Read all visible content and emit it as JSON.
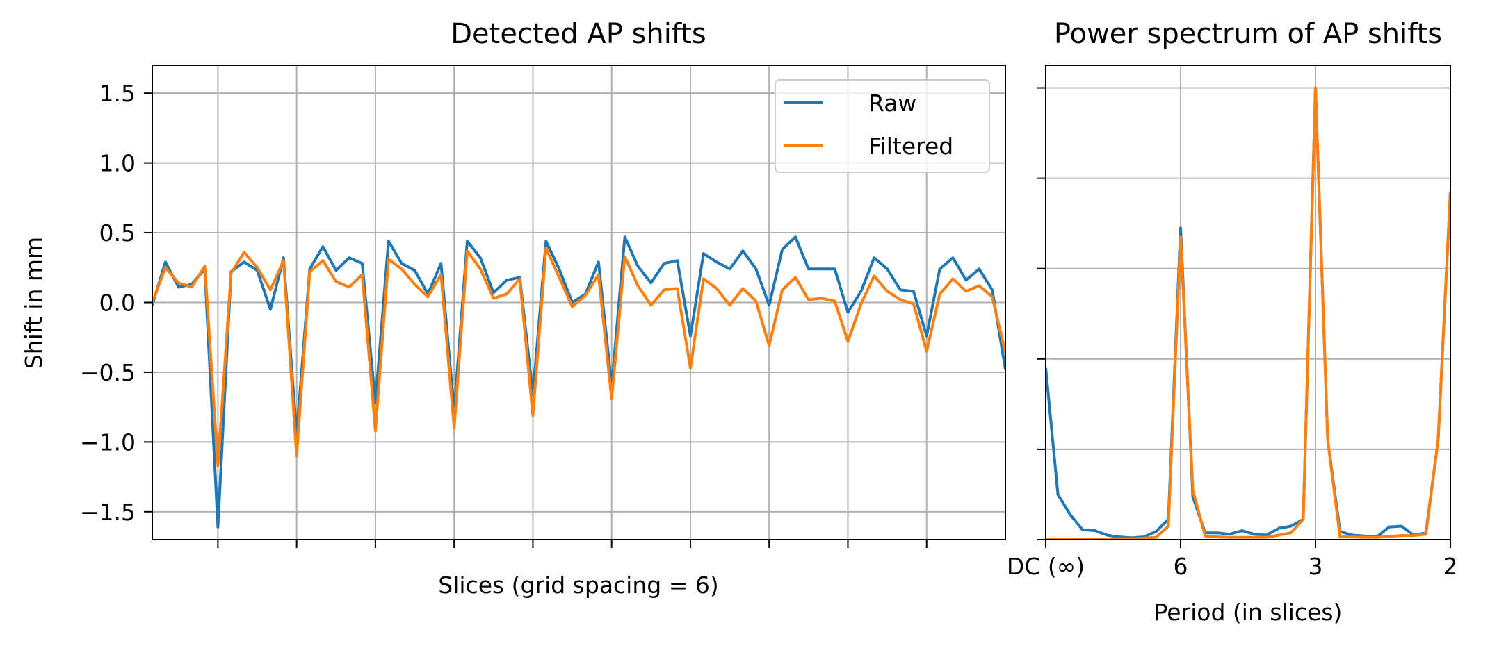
{
  "chart_data": [
    {
      "type": "line",
      "title": "Detected AP shifts",
      "xlabel": "Slices (grid spacing = 6)",
      "ylabel": "Shift in mm",
      "xlim": [
        0,
        65
      ],
      "ylim": [
        -1.7,
        1.7
      ],
      "xgrid": [
        5,
        11,
        17,
        23,
        29,
        35,
        41,
        47,
        53,
        59
      ],
      "xticklabels_shown": false,
      "yticks": [
        1.5,
        1.0,
        0.5,
        0.0,
        -0.5,
        -1.0,
        -1.5
      ],
      "ytick_labels": [
        "1.5",
        "1.0",
        "0.5",
        "0.0",
        "−0.5",
        "−1.0",
        "−1.5"
      ],
      "grid": true,
      "legend": "top-right",
      "series": [
        {
          "name": "Raw",
          "color": "#1f77b4",
          "values": [
            -0.02,
            0.29,
            0.11,
            0.13,
            0.24,
            -1.61,
            0.22,
            0.29,
            0.23,
            -0.05,
            0.32,
            -0.95,
            0.24,
            0.4,
            0.23,
            0.32,
            0.28,
            -0.72,
            0.44,
            0.28,
            0.23,
            0.06,
            0.28,
            -0.78,
            0.44,
            0.32,
            0.07,
            0.16,
            0.18,
            -0.66,
            0.44,
            0.24,
            0.0,
            0.06,
            0.29,
            -0.6,
            0.47,
            0.26,
            0.14,
            0.28,
            0.3,
            -0.24,
            0.35,
            0.29,
            0.24,
            0.37,
            0.24,
            -0.02,
            0.38,
            0.47,
            0.24,
            0.24,
            0.24,
            -0.07,
            0.08,
            0.32,
            0.24,
            0.09,
            0.08,
            -0.24,
            0.24,
            0.32,
            0.16,
            0.24,
            0.09,
            -0.48
          ]
        },
        {
          "name": "Filtered",
          "color": "#ff7f0e",
          "values": [
            0.0,
            0.25,
            0.14,
            0.11,
            0.26,
            -1.17,
            0.21,
            0.36,
            0.25,
            0.09,
            0.3,
            -1.1,
            0.22,
            0.3,
            0.15,
            0.11,
            0.2,
            -0.92,
            0.31,
            0.24,
            0.13,
            0.04,
            0.2,
            -0.9,
            0.37,
            0.24,
            0.03,
            0.06,
            0.17,
            -0.81,
            0.39,
            0.18,
            -0.03,
            0.05,
            0.2,
            -0.69,
            0.33,
            0.12,
            -0.02,
            0.09,
            0.1,
            -0.47,
            0.17,
            0.1,
            -0.02,
            0.1,
            0.01,
            -0.31,
            0.09,
            0.18,
            0.02,
            0.03,
            0.01,
            -0.28,
            -0.01,
            0.19,
            0.08,
            0.02,
            -0.01,
            -0.35,
            0.06,
            0.17,
            0.08,
            0.12,
            0.04,
            -0.36
          ]
        }
      ]
    },
    {
      "type": "line",
      "title": "Power spectrum of AP shifts",
      "xlabel": "Period (in slices)",
      "ylabel": "",
      "xlim": [
        0,
        33
      ],
      "ylim": [
        0,
        1.05
      ],
      "xticks": [
        0,
        11,
        22,
        33
      ],
      "xtick_labels": [
        "DC (∞)",
        "6",
        "3",
        "2"
      ],
      "yticks": [
        0.0,
        0.2,
        0.4,
        0.6,
        0.8,
        1.0
      ],
      "yticklabels_shown": false,
      "grid": true,
      "series": [
        {
          "name": "Raw",
          "color": "#1f77b4",
          "values": [
            0.38,
            0.1,
            0.055,
            0.022,
            0.02,
            0.01,
            0.006,
            0.004,
            0.006,
            0.018,
            0.045,
            0.69,
            0.095,
            0.015,
            0.015,
            0.012,
            0.02,
            0.012,
            0.01,
            0.025,
            0.03,
            0.045,
            1.0,
            0.22,
            0.018,
            0.01,
            0.008,
            0.006,
            0.028,
            0.03,
            0.01,
            0.015,
            0.22,
            0.77
          ]
        },
        {
          "name": "Filtered",
          "color": "#ff7f0e",
          "values": [
            0.0,
            0.0,
            0.0,
            0.001,
            0.001,
            0.001,
            0.002,
            0.002,
            0.003,
            0.005,
            0.03,
            0.67,
            0.11,
            0.008,
            0.006,
            0.005,
            0.005,
            0.005,
            0.005,
            0.01,
            0.015,
            0.045,
            1.0,
            0.22,
            0.006,
            0.006,
            0.005,
            0.005,
            0.007,
            0.009,
            0.009,
            0.012,
            0.22,
            0.77
          ]
        }
      ]
    }
  ]
}
